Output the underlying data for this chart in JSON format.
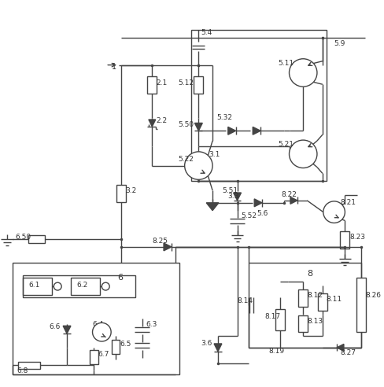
{
  "lc": "#444444",
  "lw": 1.0,
  "fw": 4.88,
  "fh": 4.92,
  "dpi": 100
}
